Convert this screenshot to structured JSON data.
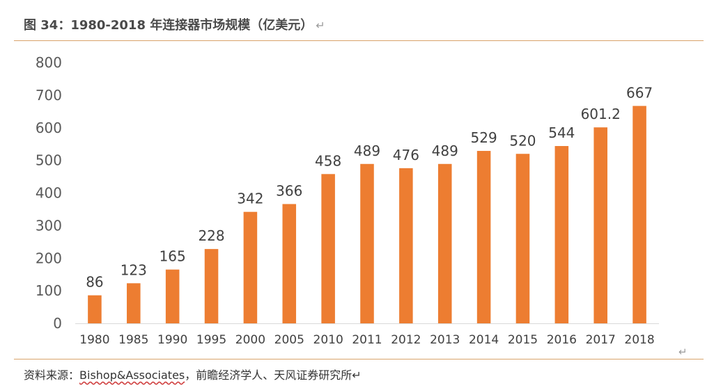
{
  "title": "图 34：1980-2018 年连接器市场规模（亿美元）",
  "title_mark": "↵",
  "source": {
    "prefix": "资料来源：",
    "name": "Bishop&Associates",
    "suffix": "，前瞻经济学人、天风证券研究所↵"
  },
  "end_mark": "↵",
  "colors": {
    "bar": "#ED7D31",
    "rule": "#D9A36A",
    "axis": "#D9D9D9"
  },
  "chart_data": {
    "type": "bar",
    "categories": [
      "1980",
      "1985",
      "1990",
      "1995",
      "2000",
      "2005",
      "2010",
      "2011",
      "2012",
      "2013",
      "2014",
      "2015",
      "2016",
      "2017",
      "2018"
    ],
    "values": [
      86,
      123,
      165,
      228,
      342,
      366,
      458,
      489,
      476,
      489,
      529,
      520,
      544,
      601.2,
      667
    ],
    "data_labels": [
      "86",
      "123",
      "165",
      "228",
      "342",
      "366",
      "458",
      "489",
      "476",
      "489",
      "529",
      "520",
      "544",
      "601.2",
      "667"
    ],
    "y_ticks": [
      "0",
      "100",
      "200",
      "300",
      "400",
      "500",
      "600",
      "700",
      "800"
    ],
    "ylim": [
      0,
      800
    ],
    "grid": false,
    "legend": "none"
  }
}
